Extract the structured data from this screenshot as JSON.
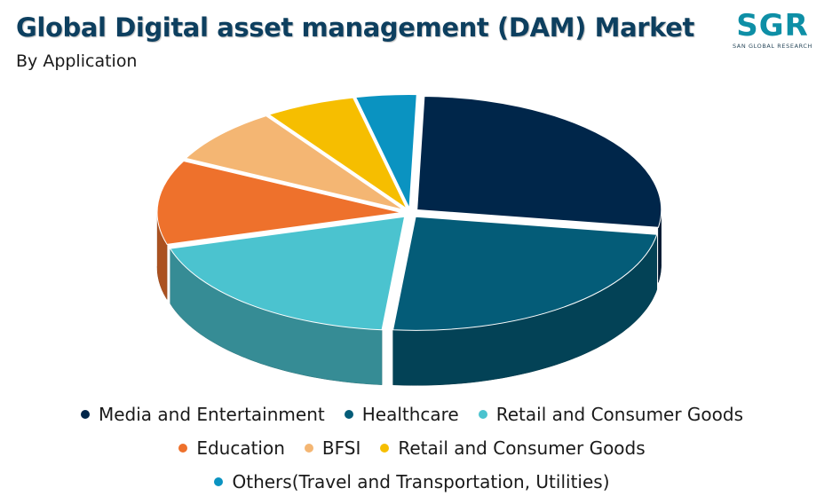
{
  "header": {
    "title": "Global Digital asset management (DAM) Market",
    "subtitle": "By Application"
  },
  "logo": {
    "mark": "SGR",
    "tagline": "SAN GLOBAL RESEARCH"
  },
  "chart_data": {
    "type": "pie",
    "title": "Global Digital asset management (DAM) Market",
    "subtitle": "By Application",
    "slices": [
      {
        "label": "Media and Entertainment",
        "value": 27,
        "color": "#00264a"
      },
      {
        "label": "Healthcare",
        "value": 24,
        "color": "#045c78"
      },
      {
        "label": "Retail and Consumer Goods",
        "value": 19,
        "color": "#4bc3cf"
      },
      {
        "label": "Education",
        "value": 12,
        "color": "#ee712c"
      },
      {
        "label": "BFSI",
        "value": 8,
        "color": "#f4b673"
      },
      {
        "label": "Retail and Consumer Goods",
        "value": 6,
        "color": "#f6be00"
      },
      {
        "label": "Others(Travel and Transportation, Utilities)",
        "value": 4,
        "color": "#0a93c1"
      }
    ],
    "legend_position": "bottom"
  }
}
